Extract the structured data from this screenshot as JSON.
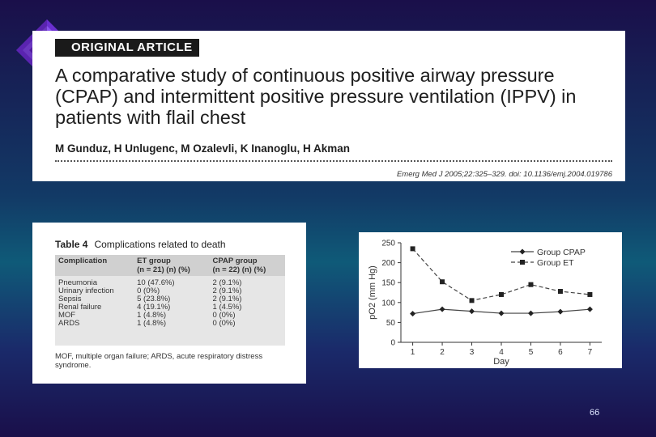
{
  "header": {
    "label": "ORIGINAL ARTICLE",
    "title": "A comparative study of continuous positive airway pressure (CPAP) and intermittent positive pressure ventilation (IPPV) in patients with flail chest",
    "authors": "M Gunduz, H Unlugenc, M Ozalevli, K Inanoglu, H Akman",
    "citation": "Emerg Med J 2005;22:325–329. doi: 10.1136/emj.2004.019786"
  },
  "table": {
    "number": "Table 4",
    "caption": "Complications related to death",
    "headers": {
      "complication": "Complication",
      "et_line1": "ET group",
      "et_line2": "(n = 21) (n) (%)",
      "cpap_line1": "CPAP group",
      "cpap_line2": "(n = 22) (n) (%)"
    },
    "rows": [
      {
        "name": "Pneumonia",
        "et": "10 (47.6%)",
        "cpap": "2 (9.1%)"
      },
      {
        "name": "Urinary infection",
        "et": "0 (0%)",
        "cpap": "2 (9.1%)"
      },
      {
        "name": "Sepsis",
        "et": "5 (23.8%)",
        "cpap": "2 (9.1%)"
      },
      {
        "name": "Renal failure",
        "et": "4 (19.1%)",
        "cpap": "1 (4.5%)"
      },
      {
        "name": "MOF",
        "et": "1 (4.8%)",
        "cpap": "0 (0%)"
      },
      {
        "name": "ARDS",
        "et": "1 (4.8%)",
        "cpap": "0 (0%)"
      }
    ],
    "footnote": "MOF, multiple organ failure; ARDS, acute respiratory distress syndrome."
  },
  "chart_data": {
    "type": "line",
    "title": "",
    "xlabel": "Day",
    "ylabel": "pO2 (mm Hg)",
    "x": [
      1,
      2,
      3,
      4,
      5,
      6,
      7
    ],
    "ylim": [
      0,
      250
    ],
    "yticks": [
      0,
      50,
      100,
      150,
      200,
      250
    ],
    "legend_position": "top-right",
    "series": [
      {
        "name": "Group CPAP",
        "marker": "diamond",
        "values": [
          72,
          83,
          78,
          73,
          73,
          77,
          83
        ]
      },
      {
        "name": "Group ET",
        "marker": "square",
        "values": [
          235,
          152,
          105,
          120,
          145,
          128,
          120
        ]
      }
    ]
  },
  "page_number": "66",
  "colors": {
    "bg_top": "#1a0f4a",
    "bg_mid": "#0f5a78",
    "panel": "#ffffff",
    "label_bg": "#1a1a1a"
  }
}
